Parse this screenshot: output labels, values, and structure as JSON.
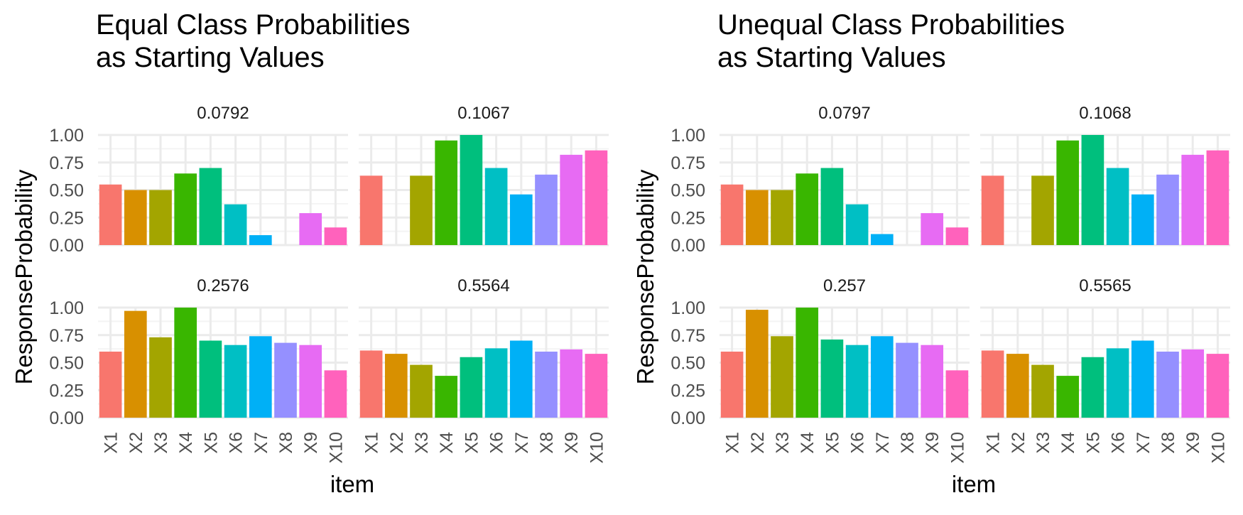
{
  "figures": [
    {
      "title_line1": "Equal Class Probabilities",
      "title_line2": "as Starting Values",
      "ylabel": "ResponseProbability",
      "xlabel": "item"
    },
    {
      "title_line1": "Unequal Class Probabilities",
      "title_line2": "as Starting Values",
      "ylabel": "ResponseProbability",
      "xlabel": "item"
    }
  ],
  "colors": [
    "#F8766D",
    "#D89000",
    "#A3A500",
    "#39B600",
    "#00BF7D",
    "#00BFC4",
    "#00B0F6",
    "#9590FF",
    "#E76BF3",
    "#FF62BC"
  ],
  "chart_data": [
    {
      "type": "bar",
      "title": "Equal Class Probabilities as Starting Values",
      "xlabel": "item",
      "ylabel": "ResponseProbability",
      "categories": [
        "X1",
        "X2",
        "X3",
        "X4",
        "X5",
        "X6",
        "X7",
        "X8",
        "X9",
        "X10"
      ],
      "yticks": [
        "0.00",
        "0.25",
        "0.50",
        "0.75",
        "1.00"
      ],
      "ylim": [
        0,
        1
      ],
      "grid": true,
      "legend": "none",
      "panels": [
        {
          "label": "0.0792",
          "values": [
            0.55,
            0.5,
            0.5,
            0.65,
            0.7,
            0.37,
            0.09,
            0.0,
            0.29,
            0.16
          ]
        },
        {
          "label": "0.1067",
          "values": [
            0.63,
            0.0,
            0.63,
            0.95,
            1.0,
            0.7,
            0.46,
            0.64,
            0.82,
            0.86
          ]
        },
        {
          "label": "0.2576",
          "values": [
            0.6,
            0.97,
            0.73,
            1.0,
            0.7,
            0.66,
            0.74,
            0.68,
            0.66,
            0.43
          ]
        },
        {
          "label": "0.5564",
          "values": [
            0.61,
            0.58,
            0.48,
            0.38,
            0.55,
            0.63,
            0.7,
            0.6,
            0.62,
            0.58
          ]
        }
      ]
    },
    {
      "type": "bar",
      "title": "Unequal Class Probabilities as Starting Values",
      "xlabel": "item",
      "ylabel": "ResponseProbability",
      "categories": [
        "X1",
        "X2",
        "X3",
        "X4",
        "X5",
        "X6",
        "X7",
        "X8",
        "X9",
        "X10"
      ],
      "yticks": [
        "0.00",
        "0.25",
        "0.50",
        "0.75",
        "1.00"
      ],
      "ylim": [
        0,
        1
      ],
      "grid": true,
      "legend": "none",
      "panels": [
        {
          "label": "0.0797",
          "values": [
            0.55,
            0.5,
            0.5,
            0.65,
            0.7,
            0.37,
            0.1,
            0.0,
            0.29,
            0.16
          ]
        },
        {
          "label": "0.1068",
          "values": [
            0.63,
            0.0,
            0.63,
            0.95,
            1.0,
            0.7,
            0.46,
            0.64,
            0.82,
            0.86
          ]
        },
        {
          "label": "0.257",
          "values": [
            0.6,
            0.98,
            0.74,
            1.0,
            0.71,
            0.66,
            0.74,
            0.68,
            0.66,
            0.43
          ]
        },
        {
          "label": "0.5565",
          "values": [
            0.61,
            0.58,
            0.48,
            0.38,
            0.55,
            0.63,
            0.7,
            0.6,
            0.62,
            0.58
          ]
        }
      ]
    }
  ]
}
